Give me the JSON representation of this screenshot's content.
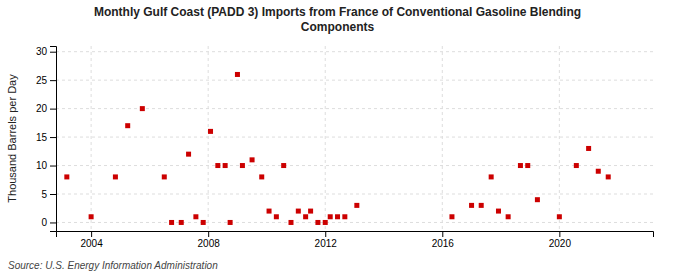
{
  "chart_data": {
    "type": "scatter",
    "title": "Monthly Gulf Coast (PADD 3) Imports from France of Conventional Gasoline Blending\nComponents",
    "ylabel": "Thousand Barrels per Day",
    "annotations": [
      "Source: U.S. Energy Information Administration"
    ],
    "color": "#cc0000",
    "marker": "square",
    "grid": true,
    "xlim": [
      2002.8,
      2023.2
    ],
    "ylim": [
      -1.5,
      31
    ],
    "xticks": [
      2004,
      2008,
      2012,
      2016,
      2020
    ],
    "yticks": [
      0,
      5,
      10,
      15,
      20,
      25,
      30
    ],
    "x": [
      2003.17,
      2004.0,
      2004.83,
      2005.25,
      2005.75,
      2006.5,
      2006.75,
      2007.08,
      2007.33,
      2007.58,
      2007.83,
      2008.08,
      2008.33,
      2008.58,
      2008.75,
      2009.0,
      2009.17,
      2009.5,
      2009.83,
      2010.08,
      2010.33,
      2010.58,
      2010.83,
      2011.08,
      2011.33,
      2011.5,
      2011.75,
      2012.0,
      2012.17,
      2012.42,
      2012.67,
      2013.08,
      2016.33,
      2017.0,
      2017.33,
      2017.67,
      2017.92,
      2018.25,
      2018.67,
      2018.92,
      2019.25,
      2020.0,
      2020.58,
      2021.0,
      2021.33,
      2021.67
    ],
    "values": [
      8,
      1,
      8,
      17,
      20,
      8,
      0,
      0,
      12,
      1,
      0,
      16,
      10,
      10,
      0,
      26,
      10,
      11,
      8,
      2,
      1,
      10,
      0,
      2,
      1,
      2,
      0,
      0,
      1,
      1,
      1,
      3,
      1,
      3,
      3,
      8,
      2,
      1,
      10,
      10,
      4,
      1,
      10,
      13,
      9,
      8
    ]
  }
}
